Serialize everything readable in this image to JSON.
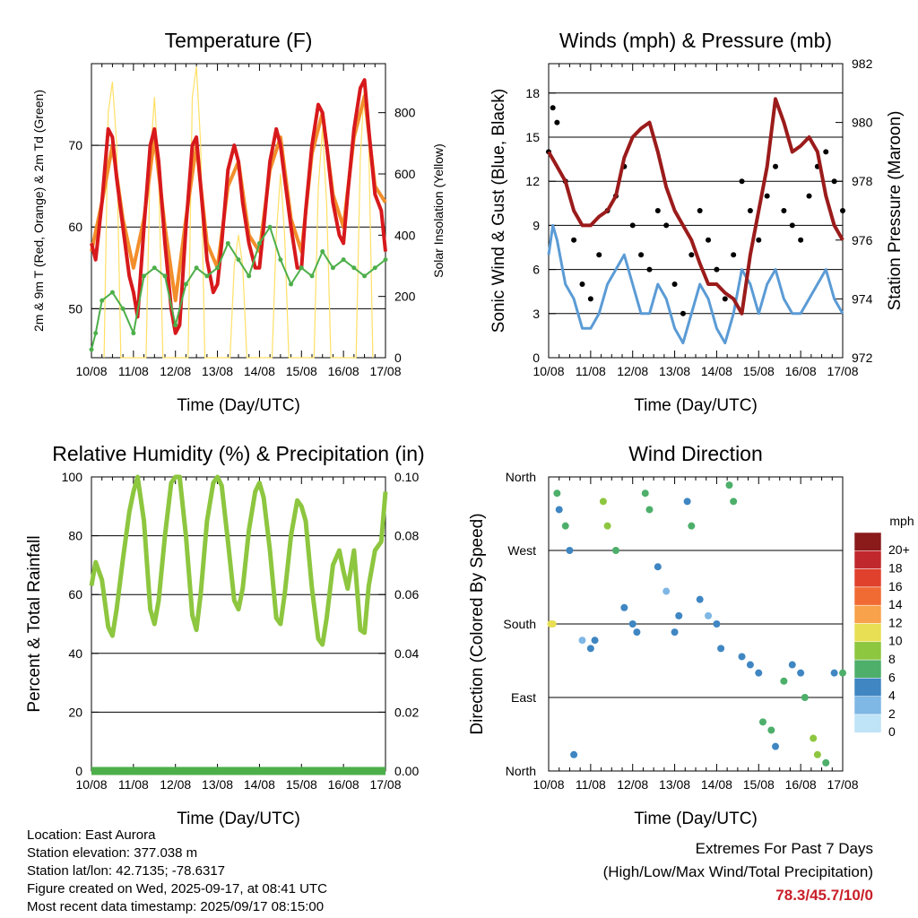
{
  "chart_data": [
    {
      "type": "line",
      "title": "Temperature (F)",
      "xlabel": "Time (Day/UTC)",
      "ylabel": "2m & 9m T (Red, Orange) & 2m Td (Green)",
      "ylabel_right": "Solar Insolation (Yellow)",
      "x_ticks": [
        "10/08",
        "11/08",
        "12/08",
        "13/08",
        "14/08",
        "15/08",
        "16/08",
        "17/08"
      ],
      "ylim": [
        44,
        80
      ],
      "y_ticks": [
        50,
        60,
        70
      ],
      "ylim_right": [
        0,
        960
      ],
      "y_ticks_right": [
        0,
        200,
        400,
        600,
        800
      ],
      "series": [
        {
          "color": "#d7191c",
          "x": [
            0,
            0.1,
            0.25,
            0.4,
            0.5,
            0.6,
            0.75,
            0.9,
            1.0,
            1.1,
            1.25,
            1.4,
            1.5,
            1.6,
            1.75,
            1.9,
            2.0,
            2.1,
            2.25,
            2.4,
            2.5,
            2.6,
            2.75,
            2.9,
            3.0,
            3.1,
            3.25,
            3.4,
            3.5,
            3.6,
            3.75,
            3.9,
            4.0,
            4.1,
            4.25,
            4.4,
            4.5,
            4.6,
            4.75,
            4.9,
            5.0,
            5.1,
            5.25,
            5.4,
            5.5,
            5.6,
            5.75,
            5.9,
            6.0,
            6.1,
            6.25,
            6.4,
            6.5,
            6.6,
            6.75,
            6.9,
            7.0
          ],
          "y": [
            58,
            56,
            63,
            72,
            71,
            66,
            60,
            54,
            52,
            49,
            60,
            70,
            72,
            68,
            58,
            50,
            47,
            48,
            60,
            70,
            71,
            65,
            56,
            52,
            53,
            58,
            67,
            70,
            68,
            63,
            58,
            55,
            55,
            60,
            68,
            72,
            70,
            66,
            60,
            55,
            55,
            62,
            70,
            75,
            74,
            70,
            63,
            59,
            58,
            64,
            72,
            77,
            78,
            72,
            64,
            62,
            57
          ]
        },
        {
          "color": "#f28e2b",
          "x": [
            0,
            0.25,
            0.5,
            0.75,
            1.0,
            1.25,
            1.5,
            1.75,
            2.0,
            2.25,
            2.5,
            2.75,
            3.0,
            3.25,
            3.5,
            3.75,
            4.0,
            4.25,
            4.5,
            4.75,
            5.0,
            5.25,
            5.5,
            5.75,
            6.0,
            6.25,
            6.5,
            6.75,
            7.0
          ],
          "y": [
            57,
            63,
            70,
            61,
            55,
            61,
            71,
            60,
            51,
            61,
            70,
            58,
            55,
            65,
            68,
            59,
            57,
            67,
            71,
            61,
            57,
            69,
            74,
            64,
            60,
            71,
            76,
            65,
            63
          ]
        },
        {
          "color": "#4daf4a",
          "x": [
            0,
            0.1,
            0.25,
            0.5,
            0.75,
            1.0,
            1.25,
            1.5,
            1.75,
            2.0,
            2.25,
            2.5,
            2.75,
            3.0,
            3.25,
            3.5,
            3.75,
            4.0,
            4.25,
            4.5,
            4.75,
            5.0,
            5.25,
            5.5,
            5.75,
            6.0,
            6.25,
            6.5,
            6.75,
            7.0
          ],
          "y": [
            45,
            47,
            51,
            52,
            50,
            47,
            54,
            55,
            54,
            48,
            53,
            55,
            54,
            55,
            58,
            56,
            54,
            58,
            60,
            56,
            53,
            55,
            54,
            57,
            55,
            56,
            55,
            54,
            55,
            56
          ]
        },
        {
          "color": "#ffe066",
          "axis": "right",
          "x": [
            0.3,
            0.4,
            0.5,
            0.6,
            0.7,
            1.3,
            1.4,
            1.5,
            1.6,
            1.7,
            2.3,
            2.4,
            2.5,
            2.6,
            2.7,
            3.3,
            3.4,
            3.5,
            3.6,
            3.7,
            4.3,
            4.4,
            4.5,
            4.6,
            4.7,
            5.3,
            5.4,
            5.5,
            5.6,
            5.7,
            6.3,
            6.4,
            6.5,
            6.6,
            6.7
          ],
          "y": [
            0,
            800,
            900,
            700,
            0,
            0,
            650,
            850,
            600,
            0,
            0,
            850,
            950,
            700,
            0,
            0,
            300,
            400,
            300,
            0,
            0,
            400,
            600,
            400,
            0,
            0,
            550,
            750,
            500,
            0,
            0,
            650,
            900,
            700,
            0
          ]
        }
      ]
    },
    {
      "type": "line",
      "title": "Winds (mph) & Pressure (mb)",
      "xlabel": "Time (Day/UTC)",
      "ylabel": "Sonic Wind & Gust (Blue, Black)",
      "ylabel_right": "Station Pressure (Maroon)",
      "x_ticks": [
        "10/08",
        "11/08",
        "12/08",
        "13/08",
        "14/08",
        "15/08",
        "16/08",
        "17/08"
      ],
      "ylim": [
        0,
        20
      ],
      "y_ticks": [
        0,
        3,
        6,
        9,
        12,
        15,
        18
      ],
      "ylim_right": [
        972,
        982
      ],
      "y_ticks_right": [
        972,
        974,
        976,
        978,
        980,
        982
      ],
      "series": [
        {
          "color": "#9b1b1b",
          "axis": "right",
          "x": [
            0,
            0.2,
            0.4,
            0.6,
            0.8,
            1.0,
            1.2,
            1.4,
            1.6,
            1.8,
            2.0,
            2.2,
            2.4,
            2.6,
            2.8,
            3.0,
            3.2,
            3.4,
            3.6,
            3.8,
            4.0,
            4.2,
            4.4,
            4.6,
            4.8,
            5.0,
            5.2,
            5.4,
            5.6,
            5.8,
            6.0,
            6.2,
            6.4,
            6.6,
            6.8,
            7.0
          ],
          "y": [
            979,
            978.5,
            978,
            977,
            976.5,
            976.5,
            976.8,
            977,
            977.5,
            978.8,
            979.5,
            979.8,
            980,
            979,
            977.8,
            977,
            976.5,
            976,
            975.2,
            974.5,
            974.5,
            974.2,
            974,
            973.5,
            975.5,
            977,
            978.5,
            980.8,
            980,
            979,
            979.2,
            979.5,
            979,
            977.5,
            976.5,
            976
          ]
        },
        {
          "color": "#000000",
          "style": "points",
          "x": [
            0,
            0.1,
            0.2,
            0.4,
            0.6,
            0.8,
            1.0,
            1.2,
            1.4,
            1.6,
            1.8,
            2.0,
            2.2,
            2.4,
            2.6,
            2.8,
            3.0,
            3.2,
            3.4,
            3.6,
            3.8,
            4.0,
            4.2,
            4.4,
            4.6,
            4.8,
            5.0,
            5.2,
            5.4,
            5.6,
            5.8,
            6.0,
            6.2,
            6.4,
            6.6,
            6.8,
            7.0
          ],
          "y": [
            14,
            17,
            16,
            12,
            8,
            5,
            4,
            7,
            10,
            11,
            13,
            9,
            7,
            6,
            10,
            9,
            5,
            3,
            7,
            10,
            8,
            6,
            4,
            7,
            12,
            10,
            8,
            11,
            13,
            10,
            9,
            8,
            11,
            13,
            14,
            12,
            10
          ]
        },
        {
          "color": "#5b9bd5",
          "x": [
            0,
            0.1,
            0.2,
            0.4,
            0.6,
            0.8,
            1.0,
            1.2,
            1.4,
            1.6,
            1.8,
            2.0,
            2.2,
            2.4,
            2.6,
            2.8,
            3.0,
            3.2,
            3.4,
            3.6,
            3.8,
            4.0,
            4.2,
            4.4,
            4.6,
            4.8,
            5.0,
            5.2,
            5.4,
            5.6,
            5.8,
            6.0,
            6.2,
            6.4,
            6.6,
            6.8,
            7.0
          ],
          "y": [
            7,
            9,
            8,
            5,
            4,
            2,
            2,
            3,
            5,
            6,
            7,
            5,
            3,
            3,
            5,
            4,
            2,
            1,
            3,
            5,
            4,
            2,
            1,
            3,
            6,
            5,
            3,
            5,
            6,
            4,
            3,
            3,
            4,
            5,
            6,
            4,
            3
          ]
        }
      ]
    },
    {
      "type": "line",
      "title": "Relative Humidity (%) & Precipitation (in)",
      "xlabel": "Time (Day/UTC)",
      "ylabel": "Percent & Total Rainfall",
      "x_ticks": [
        "10/08",
        "11/08",
        "12/08",
        "13/08",
        "14/08",
        "15/08",
        "16/08",
        "17/08"
      ],
      "ylim": [
        0,
        100
      ],
      "y_ticks": [
        0,
        20,
        40,
        60,
        80,
        100
      ],
      "ylim_right": [
        0,
        0.1
      ],
      "y_ticks_right": [
        "0.00",
        "0.02",
        "0.04",
        "0.06",
        "0.08",
        "0.10"
      ],
      "series": [
        {
          "color": "#8dc63f",
          "x": [
            0,
            0.1,
            0.25,
            0.4,
            0.5,
            0.6,
            0.75,
            0.9,
            1.0,
            1.1,
            1.25,
            1.4,
            1.5,
            1.6,
            1.75,
            1.9,
            2.0,
            2.1,
            2.25,
            2.4,
            2.5,
            2.6,
            2.75,
            2.9,
            3.0,
            3.1,
            3.25,
            3.4,
            3.5,
            3.6,
            3.75,
            3.9,
            4.0,
            4.1,
            4.25,
            4.4,
            4.5,
            4.6,
            4.75,
            4.9,
            5.0,
            5.1,
            5.25,
            5.4,
            5.5,
            5.6,
            5.75,
            5.9,
            6.0,
            6.1,
            6.25,
            6.4,
            6.5,
            6.6,
            6.75,
            6.9,
            7.0
          ],
          "y": [
            63,
            71,
            65,
            49,
            46,
            55,
            72,
            88,
            95,
            100,
            85,
            55,
            50,
            58,
            80,
            98,
            100,
            100,
            80,
            53,
            48,
            60,
            85,
            98,
            100,
            97,
            78,
            58,
            55,
            62,
            82,
            95,
            98,
            93,
            75,
            52,
            50,
            60,
            80,
            92,
            90,
            85,
            62,
            45,
            43,
            52,
            70,
            75,
            68,
            62,
            75,
            48,
            47,
            63,
            75,
            78,
            95
          ]
        },
        {
          "color": "#4daf4a",
          "x": [
            0,
            7
          ],
          "y": [
            0,
            0
          ],
          "axis": "right"
        }
      ]
    },
    {
      "type": "scatter",
      "title": "Wind Direction",
      "xlabel": "Time (Day/UTC)",
      "ylabel": "Direction (Colored By Speed)",
      "x_ticks": [
        "10/08",
        "11/08",
        "12/08",
        "13/08",
        "14/08",
        "15/08",
        "16/08",
        "17/08"
      ],
      "y_ticks": [
        "North",
        "East",
        "South",
        "West",
        "North"
      ],
      "colorbar": {
        "title": "mph",
        "labels": [
          "20+",
          "18",
          "16",
          "14",
          "12",
          "10",
          "8",
          "6",
          "4",
          "2",
          "0"
        ],
        "colors": [
          "#8b1a1a",
          "#c0282d",
          "#e0412d",
          "#f06b33",
          "#f8a24b",
          "#e8df55",
          "#8dc63f",
          "#4daf6a",
          "#3f86c2",
          "#7fb7e5",
          "#bfe3f7"
        ]
      },
      "x": [
        0.05,
        0.1,
        0.2,
        0.25,
        0.4,
        0.5,
        0.6,
        0.8,
        1.0,
        1.1,
        1.3,
        1.4,
        1.6,
        1.8,
        2.0,
        2.1,
        2.3,
        2.4,
        2.6,
        2.8,
        3.0,
        3.1,
        3.3,
        3.4,
        3.6,
        3.8,
        4.0,
        4.1,
        4.3,
        4.4,
        4.6,
        4.8,
        5.0,
        5.1,
        5.3,
        5.4,
        5.6,
        5.8,
        6.0,
        6.1,
        6.3,
        6.4,
        6.6,
        6.8,
        7.0
      ],
      "y": [
        180,
        180,
        340,
        320,
        300,
        270,
        20,
        160,
        150,
        160,
        330,
        300,
        270,
        200,
        180,
        170,
        340,
        320,
        250,
        220,
        170,
        190,
        330,
        300,
        210,
        190,
        180,
        150,
        350,
        330,
        140,
        130,
        120,
        60,
        50,
        30,
        110,
        130,
        120,
        90,
        40,
        20,
        10,
        120,
        120
      ],
      "speeds": [
        10,
        9,
        6,
        4,
        5,
        4,
        3,
        2,
        3,
        3,
        7,
        8,
        5,
        3,
        3,
        4,
        6,
        5,
        3,
        2,
        3,
        3,
        4,
        5,
        3,
        2,
        3,
        3,
        6,
        5,
        4,
        3,
        4,
        6,
        5,
        4,
        5,
        3,
        4,
        6,
        7,
        8,
        6,
        4,
        5
      ]
    }
  ],
  "info": {
    "location": "Location: East Aurora",
    "elevation": "Station elevation: 377.038 m",
    "latlon": "Station lat/lon: 42.7135; -78.6317",
    "created": "Figure created on Wed, 2025-09-17, at 08:41 UTC",
    "recent": "Most recent data timestamp: 2025/09/17 08:15:00"
  },
  "extremes": {
    "title": "Extremes For Past 7 Days",
    "subtitle": "(High/Low/Max Wind/Total Precipitation)",
    "values": "78.3/45.7/10/0"
  }
}
